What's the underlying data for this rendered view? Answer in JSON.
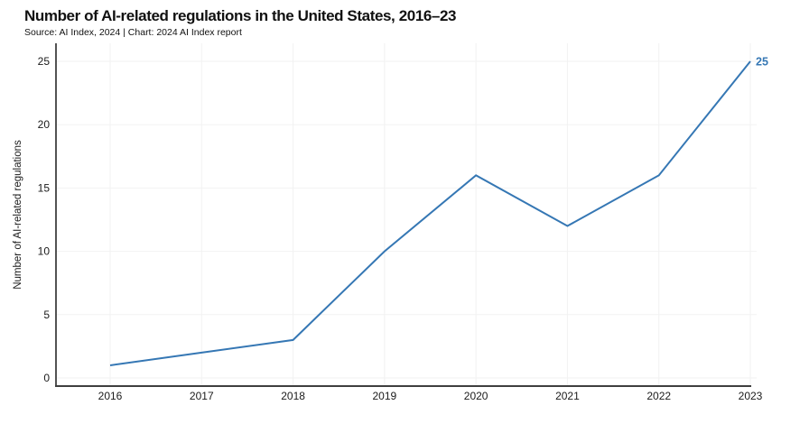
{
  "chart_data": {
    "type": "line",
    "title": "Number of AI-related regulations in the United States, 2016–23",
    "source_line": "Source: AI Index, 2024 | Chart: 2024 AI Index report",
    "categories": [
      "2016",
      "2017",
      "2018",
      "2019",
      "2020",
      "2021",
      "2022",
      "2023"
    ],
    "series": [
      {
        "name": "Number of AI-related regulations",
        "values": [
          1,
          2,
          3,
          10,
          16,
          12,
          16,
          25
        ]
      }
    ],
    "xlabel": "",
    "ylabel": "Number of AI-related regulations",
    "ylim": [
      0,
      25
    ],
    "yticks": [
      0,
      5,
      10,
      15,
      20,
      25
    ],
    "grid": true,
    "legend_position": "none",
    "end_point_label": "25",
    "colors": {
      "line": "#3577b4",
      "end_label": "#3577b4",
      "grid": "#f2f2f2",
      "left_spine": "#1a1a1a",
      "bottom_spine": "#3f3f3f",
      "tick_text": "#1a1a1a"
    }
  }
}
